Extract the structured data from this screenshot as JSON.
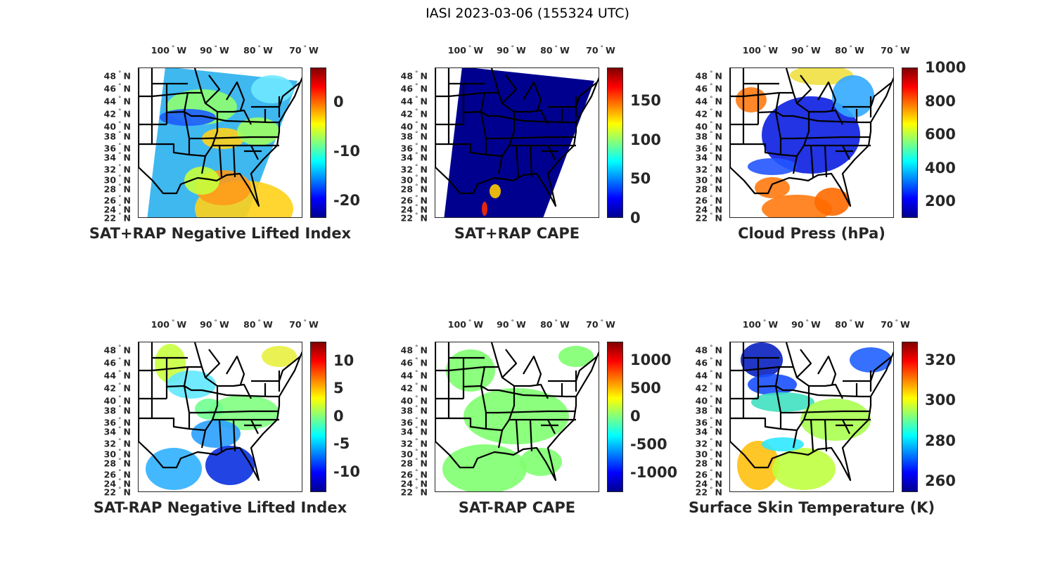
{
  "title": "IASI 2023-03-06 (155324 UTC)",
  "lon_labels": [
    {
      "deg": "100",
      "hemi": "W"
    },
    {
      "deg": "90",
      "hemi": "W"
    },
    {
      "deg": "80",
      "hemi": "W"
    },
    {
      "deg": "70",
      "hemi": "W"
    }
  ],
  "lat_labels": [
    {
      "deg": "48",
      "hemi": "N"
    },
    {
      "deg": "46",
      "hemi": "N"
    },
    {
      "deg": "44",
      "hemi": "N"
    },
    {
      "deg": "42",
      "hemi": "N"
    },
    {
      "deg": "40",
      "hemi": "N"
    },
    {
      "deg": "38",
      "hemi": "N"
    },
    {
      "deg": "36",
      "hemi": "N"
    },
    {
      "deg": "34",
      "hemi": "N"
    },
    {
      "deg": "32",
      "hemi": "N"
    },
    {
      "deg": "30",
      "hemi": "N"
    },
    {
      "deg": "28",
      "hemi": "N"
    },
    {
      "deg": "26",
      "hemi": "N"
    },
    {
      "deg": "24",
      "hemi": "N"
    },
    {
      "deg": "22",
      "hemi": "N"
    }
  ],
  "colormap": "jet",
  "panels": [
    {
      "title": "SAT+RAP Negative Lifted Index",
      "cbar_range": [
        -23.6,
        7
      ],
      "cbar_ticks": [
        "0",
        "-10",
        "-20"
      ]
    },
    {
      "title": "SAT+RAP CAPE",
      "cbar_range": [
        0,
        192
      ],
      "cbar_ticks": [
        "150",
        "100",
        "50",
        "0"
      ]
    },
    {
      "title": "Cloud Press (hPa)",
      "cbar_range": [
        100,
        1000
      ],
      "cbar_ticks": [
        "1000",
        "800",
        "600",
        "400",
        "200"
      ]
    },
    {
      "title": "SAT-RAP Negative Lifted Index",
      "cbar_range": [
        -13.7,
        13.4
      ],
      "cbar_ticks": [
        "10",
        "5",
        "0",
        "-5",
        "-10"
      ]
    },
    {
      "title": "SAT-RAP CAPE",
      "cbar_range": [
        -1350,
        1325
      ],
      "cbar_ticks": [
        "1000",
        "500",
        "0",
        "-500",
        "-1000"
      ]
    },
    {
      "title": "Surface Skin Temperature (K)",
      "cbar_range": [
        254.4,
        329
      ],
      "cbar_ticks": [
        "320",
        "300",
        "280",
        "260"
      ]
    }
  ]
}
